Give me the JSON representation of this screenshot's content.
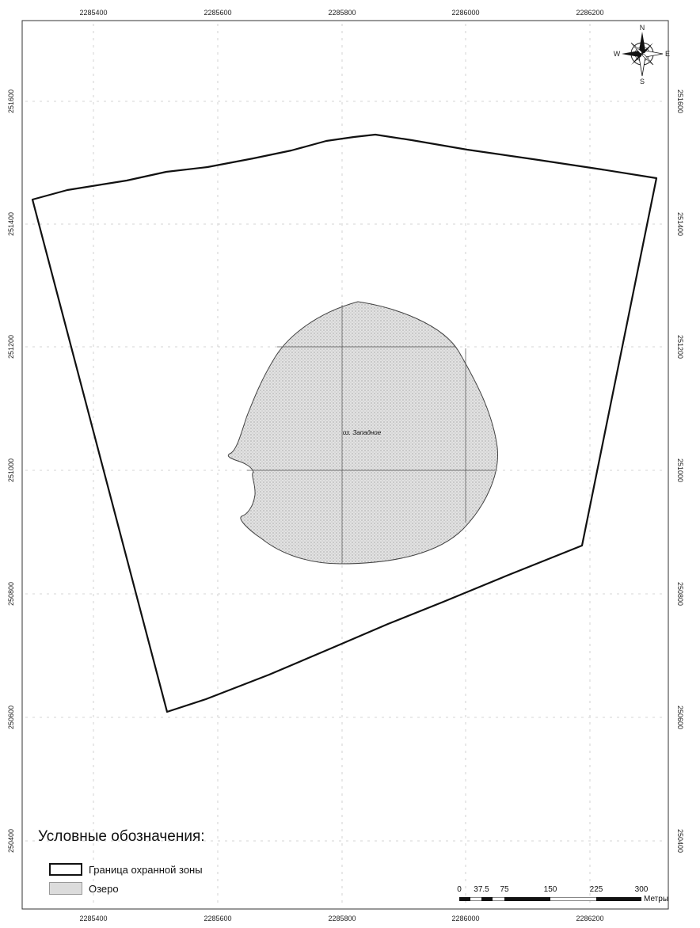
{
  "map": {
    "lake_label": "оз. Западное",
    "x_ticks_top": [
      "2285400",
      "2285600",
      "2285800",
      "2286000",
      "2286200"
    ],
    "x_ticks_bottom": [
      "2285400",
      "2285600",
      "2285800",
      "2286000",
      "2286200"
    ],
    "y_ticks_left": [
      "251600",
      "251400",
      "251200",
      "251000",
      "250800",
      "250600",
      "250400"
    ],
    "y_ticks_right": [
      "251600",
      "251400",
      "251200",
      "251000",
      "250800",
      "250600",
      "250400"
    ]
  },
  "compass": {
    "n": "N",
    "s": "S",
    "e": "E",
    "w": "W"
  },
  "legend": {
    "title": "Условные обозначения:",
    "items": [
      {
        "label": "Граница охранной зоны"
      },
      {
        "label": "Озеро"
      }
    ]
  },
  "scale": {
    "labels": [
      "0",
      "37.5",
      "75",
      "150",
      "225",
      "300"
    ],
    "unit": "Метры"
  },
  "colors": {
    "boundary": "#111111",
    "lake_fill": "#d9d9d9",
    "grid": "#bdbdbd"
  }
}
